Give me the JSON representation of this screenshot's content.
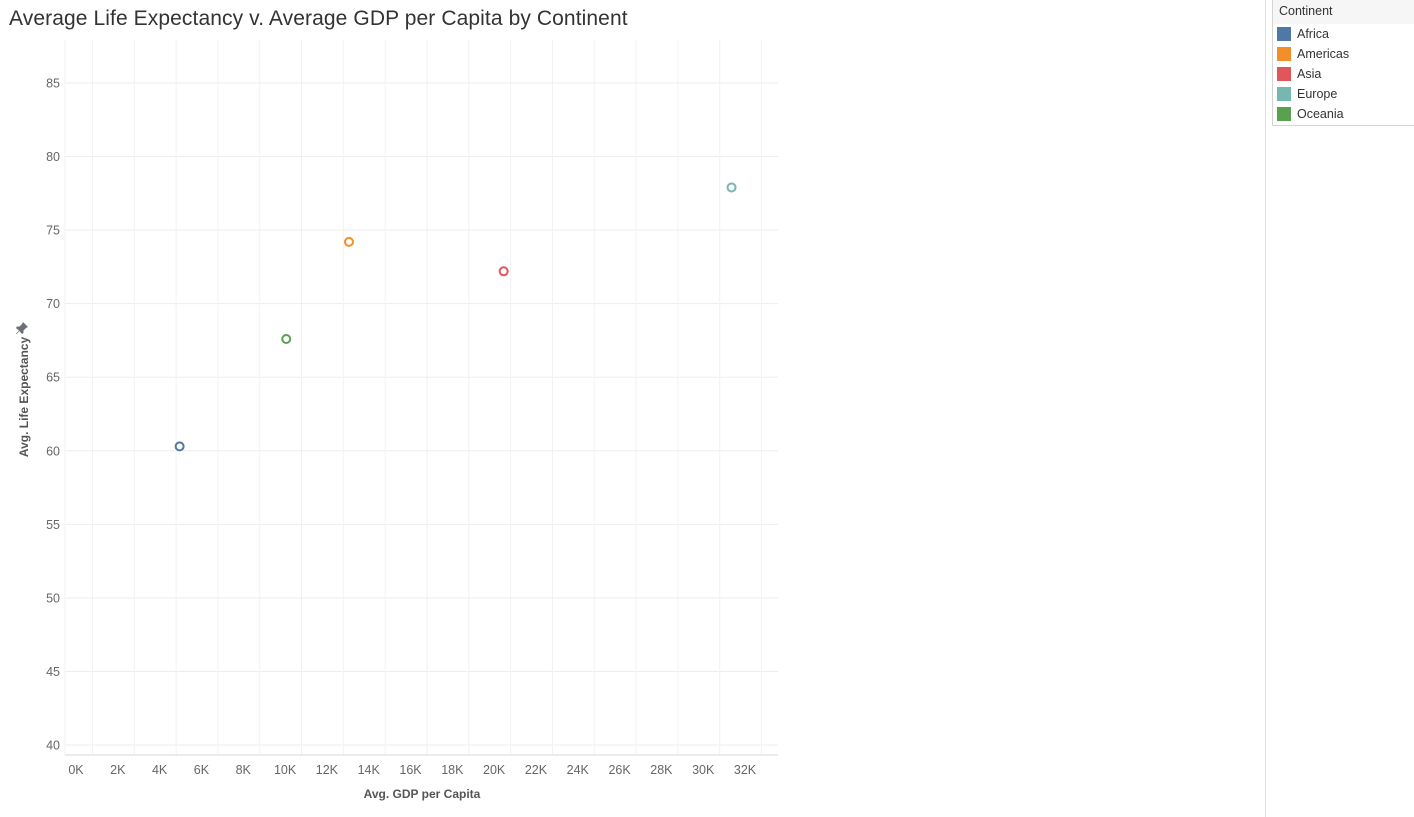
{
  "title": "Average Life Expectancy v. Average GDP per Capita by Continent",
  "legend": {
    "title": "Continent",
    "items": [
      {
        "label": "Africa",
        "color": "#4e79a7"
      },
      {
        "label": "Americas",
        "color": "#f28e2b"
      },
      {
        "label": "Asia",
        "color": "#e15759"
      },
      {
        "label": "Europe",
        "color": "#76b7b2"
      },
      {
        "label": "Oceania",
        "color": "#59a14f"
      }
    ]
  },
  "pin_icon": "pin-icon",
  "chart_data": {
    "type": "scatter",
    "title": "Average Life Expectancy v. Average GDP per Capita by Continent",
    "xlabel": "Avg. GDP per Capita",
    "ylabel": "Avg. Life Expectancy",
    "xlim": [
      0,
      33500
    ],
    "ylim": [
      40,
      87
    ],
    "x_ticks": [
      0,
      2000,
      4000,
      6000,
      8000,
      10000,
      12000,
      14000,
      16000,
      18000,
      20000,
      22000,
      24000,
      26000,
      28000,
      30000,
      32000
    ],
    "x_tick_labels": [
      "0K",
      "2K",
      "4K",
      "6K",
      "8K",
      "10K",
      "12K",
      "14K",
      "16K",
      "18K",
      "20K",
      "22K",
      "24K",
      "26K",
      "28K",
      "30K",
      "32K"
    ],
    "y_ticks": [
      40,
      45,
      50,
      55,
      60,
      65,
      70,
      75,
      80,
      85
    ],
    "y_tick_labels": [
      "40",
      "45",
      "50",
      "55",
      "60",
      "65",
      "70",
      "75",
      "80",
      "85"
    ],
    "grid": true,
    "legend_position": "right",
    "series": [
      {
        "name": "Africa",
        "x": 5100,
        "y": 60.3,
        "color": "#4e79a7"
      },
      {
        "name": "Americas",
        "x": 13200,
        "y": 74.2,
        "color": "#f28e2b"
      },
      {
        "name": "Asia",
        "x": 20600,
        "y": 72.2,
        "color": "#e15759"
      },
      {
        "name": "Europe",
        "x": 31500,
        "y": 77.9,
        "color": "#76b7b2"
      },
      {
        "name": "Oceania",
        "x": 10200,
        "y": 67.6,
        "color": "#59a14f"
      }
    ]
  }
}
